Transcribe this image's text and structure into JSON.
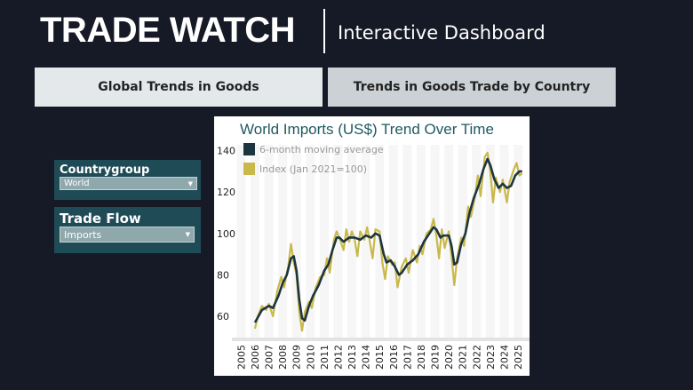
{
  "header": {
    "title": "TRADE WATCH",
    "subtitle": "Interactive Dashboard"
  },
  "tabs": [
    {
      "label": "Global Trends in Goods",
      "active": true
    },
    {
      "label": "Trends in Goods Trade by Country",
      "active": false
    }
  ],
  "filters": [
    {
      "label": "Countrygroup",
      "value": "World"
    },
    {
      "label": "Trade Flow",
      "value": "Imports"
    }
  ],
  "colors": {
    "background": "#161a26",
    "panel": "#1f4b57",
    "ma": "#1c3540",
    "index": "#c9b84a",
    "title": "#1f5a60"
  },
  "chart_data": {
    "type": "line",
    "title": "World Imports (US$) Trend Over Time",
    "ylim": [
      48,
      145
    ],
    "yticks": [
      60,
      80,
      100,
      120,
      140
    ],
    "xticks": [
      "2005",
      "2006",
      "2007",
      "2008",
      "2009",
      "2010",
      "2011",
      "2012",
      "2013",
      "2014",
      "2015",
      "2016",
      "2017",
      "2018",
      "2019",
      "2020",
      "2021",
      "2022",
      "2023",
      "2024",
      "2025"
    ],
    "legend_position": "top-left",
    "series": [
      {
        "name": "6-month moving average",
        "color": "#1c3540",
        "points": [
          [
            2006.0,
            57
          ],
          [
            2006.5,
            63
          ],
          [
            2007.0,
            65
          ],
          [
            2007.3,
            64
          ],
          [
            2007.7,
            70
          ],
          [
            2008.0,
            76
          ],
          [
            2008.3,
            80
          ],
          [
            2008.6,
            88
          ],
          [
            2008.8,
            89
          ],
          [
            2009.0,
            82
          ],
          [
            2009.2,
            68
          ],
          [
            2009.4,
            59
          ],
          [
            2009.6,
            58
          ],
          [
            2009.9,
            65
          ],
          [
            2010.2,
            70
          ],
          [
            2010.6,
            75
          ],
          [
            2011.0,
            82
          ],
          [
            2011.3,
            85
          ],
          [
            2011.6,
            92
          ],
          [
            2011.9,
            98
          ],
          [
            2012.1,
            98
          ],
          [
            2012.4,
            96
          ],
          [
            2012.8,
            98
          ],
          [
            2013.2,
            98
          ],
          [
            2013.6,
            97
          ],
          [
            2014.0,
            99
          ],
          [
            2014.4,
            98
          ],
          [
            2014.7,
            100
          ],
          [
            2015.0,
            99
          ],
          [
            2015.3,
            90
          ],
          [
            2015.5,
            86
          ],
          [
            2015.8,
            87
          ],
          [
            2016.1,
            84
          ],
          [
            2016.4,
            80
          ],
          [
            2016.6,
            81
          ],
          [
            2017.0,
            85
          ],
          [
            2017.4,
            87
          ],
          [
            2017.8,
            90
          ],
          [
            2018.2,
            96
          ],
          [
            2018.5,
            99
          ],
          [
            2018.9,
            103
          ],
          [
            2019.1,
            102
          ],
          [
            2019.4,
            98
          ],
          [
            2019.6,
            99
          ],
          [
            2020.0,
            99
          ],
          [
            2020.2,
            94
          ],
          [
            2020.4,
            85
          ],
          [
            2020.6,
            86
          ],
          [
            2020.9,
            95
          ],
          [
            2021.2,
            100
          ],
          [
            2021.5,
            110
          ],
          [
            2021.8,
            117
          ],
          [
            2022.2,
            124
          ],
          [
            2022.5,
            131
          ],
          [
            2022.8,
            136
          ],
          [
            2023.0,
            133
          ],
          [
            2023.3,
            126
          ],
          [
            2023.6,
            122
          ],
          [
            2023.9,
            124
          ],
          [
            2024.2,
            122
          ],
          [
            2024.5,
            123
          ],
          [
            2024.8,
            128
          ],
          [
            2025.1,
            130
          ],
          [
            2025.3,
            130
          ]
        ]
      },
      {
        "name": "Index (Jan 2021=100)",
        "color": "#c9b84a",
        "points": [
          [
            2006.0,
            54
          ],
          [
            2006.2,
            60
          ],
          [
            2006.5,
            65
          ],
          [
            2006.8,
            63
          ],
          [
            2007.0,
            66
          ],
          [
            2007.3,
            60
          ],
          [
            2007.6,
            72
          ],
          [
            2007.9,
            79
          ],
          [
            2008.1,
            74
          ],
          [
            2008.4,
            84
          ],
          [
            2008.6,
            95
          ],
          [
            2008.8,
            86
          ],
          [
            2009.0,
            80
          ],
          [
            2009.2,
            62
          ],
          [
            2009.4,
            53
          ],
          [
            2009.6,
            62
          ],
          [
            2009.9,
            67
          ],
          [
            2010.1,
            64
          ],
          [
            2010.4,
            74
          ],
          [
            2010.7,
            79
          ],
          [
            2011.0,
            80
          ],
          [
            2011.2,
            88
          ],
          [
            2011.4,
            81
          ],
          [
            2011.7,
            97
          ],
          [
            2011.9,
            101
          ],
          [
            2012.2,
            96
          ],
          [
            2012.4,
            92
          ],
          [
            2012.6,
            102
          ],
          [
            2012.8,
            96
          ],
          [
            2013.0,
            101
          ],
          [
            2013.2,
            97
          ],
          [
            2013.4,
            89
          ],
          [
            2013.6,
            101
          ],
          [
            2013.9,
            97
          ],
          [
            2014.1,
            103
          ],
          [
            2014.3,
            96
          ],
          [
            2014.5,
            88
          ],
          [
            2014.7,
            102
          ],
          [
            2015.0,
            101
          ],
          [
            2015.2,
            86
          ],
          [
            2015.4,
            78
          ],
          [
            2015.6,
            89
          ],
          [
            2015.9,
            85
          ],
          [
            2016.1,
            86
          ],
          [
            2016.3,
            74
          ],
          [
            2016.6,
            84
          ],
          [
            2016.9,
            88
          ],
          [
            2017.1,
            81
          ],
          [
            2017.4,
            92
          ],
          [
            2017.7,
            86
          ],
          [
            2017.9,
            94
          ],
          [
            2018.1,
            90
          ],
          [
            2018.4,
            100
          ],
          [
            2018.7,
            102
          ],
          [
            2018.9,
            107
          ],
          [
            2019.1,
            99
          ],
          [
            2019.3,
            88
          ],
          [
            2019.5,
            102
          ],
          [
            2019.7,
            93
          ],
          [
            2020.0,
            101
          ],
          [
            2020.2,
            89
          ],
          [
            2020.4,
            75
          ],
          [
            2020.6,
            88
          ],
          [
            2020.9,
            98
          ],
          [
            2021.1,
            94
          ],
          [
            2021.4,
            113
          ],
          [
            2021.6,
            108
          ],
          [
            2021.9,
            118
          ],
          [
            2022.1,
            128
          ],
          [
            2022.3,
            118
          ],
          [
            2022.6,
            137
          ],
          [
            2022.8,
            139
          ],
          [
            2023.0,
            130
          ],
          [
            2023.2,
            115
          ],
          [
            2023.4,
            127
          ],
          [
            2023.7,
            120
          ],
          [
            2023.9,
            126
          ],
          [
            2024.2,
            115
          ],
          [
            2024.4,
            125
          ],
          [
            2024.7,
            131
          ],
          [
            2024.9,
            134
          ],
          [
            2025.1,
            128
          ],
          [
            2025.3,
            129
          ]
        ]
      }
    ]
  }
}
